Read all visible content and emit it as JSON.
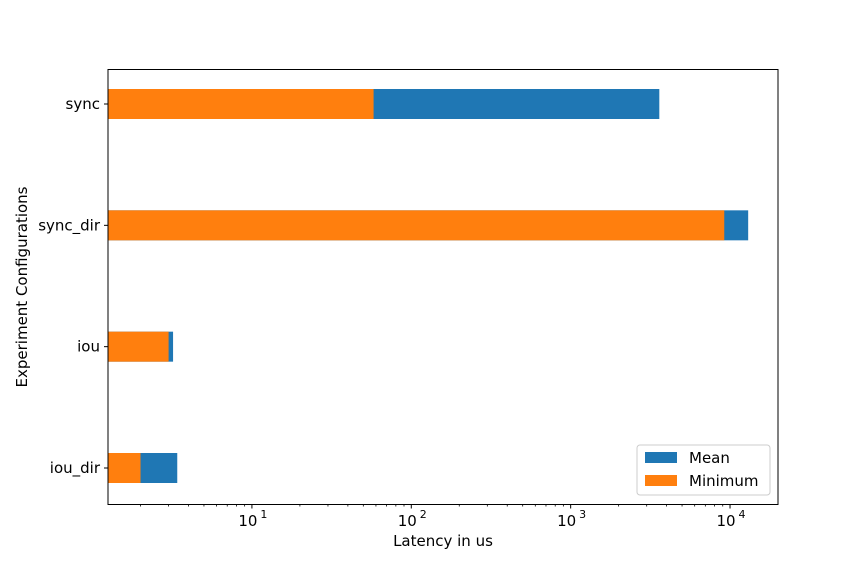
{
  "chart_data": {
    "type": "bar",
    "orientation": "horizontal",
    "stacked_overlay": true,
    "xscale": "log",
    "xlim": [
      1.25,
      20000
    ],
    "xlabel": "Latency in us",
    "ylabel": "Experiment Configurations",
    "xticks": [
      {
        "value": 10,
        "base": "10",
        "exp": "1"
      },
      {
        "value": 100,
        "base": "10",
        "exp": "2"
      },
      {
        "value": 1000,
        "base": "10",
        "exp": "3"
      },
      {
        "value": 10000,
        "base": "10",
        "exp": "4"
      }
    ],
    "categories": [
      "sync",
      "sync_dir",
      "iou",
      "iou_dir"
    ],
    "series": [
      {
        "name": "Mean",
        "color": "#1f77b4",
        "values": [
          3600,
          13000,
          3.2,
          3.4
        ]
      },
      {
        "name": "Minimum",
        "color": "#ff7f0e",
        "values": [
          58,
          9200,
          3.0,
          2.0
        ]
      }
    ],
    "legend": {
      "position": "lower-right",
      "items": [
        "Mean",
        "Minimum"
      ]
    },
    "grid": false
  }
}
